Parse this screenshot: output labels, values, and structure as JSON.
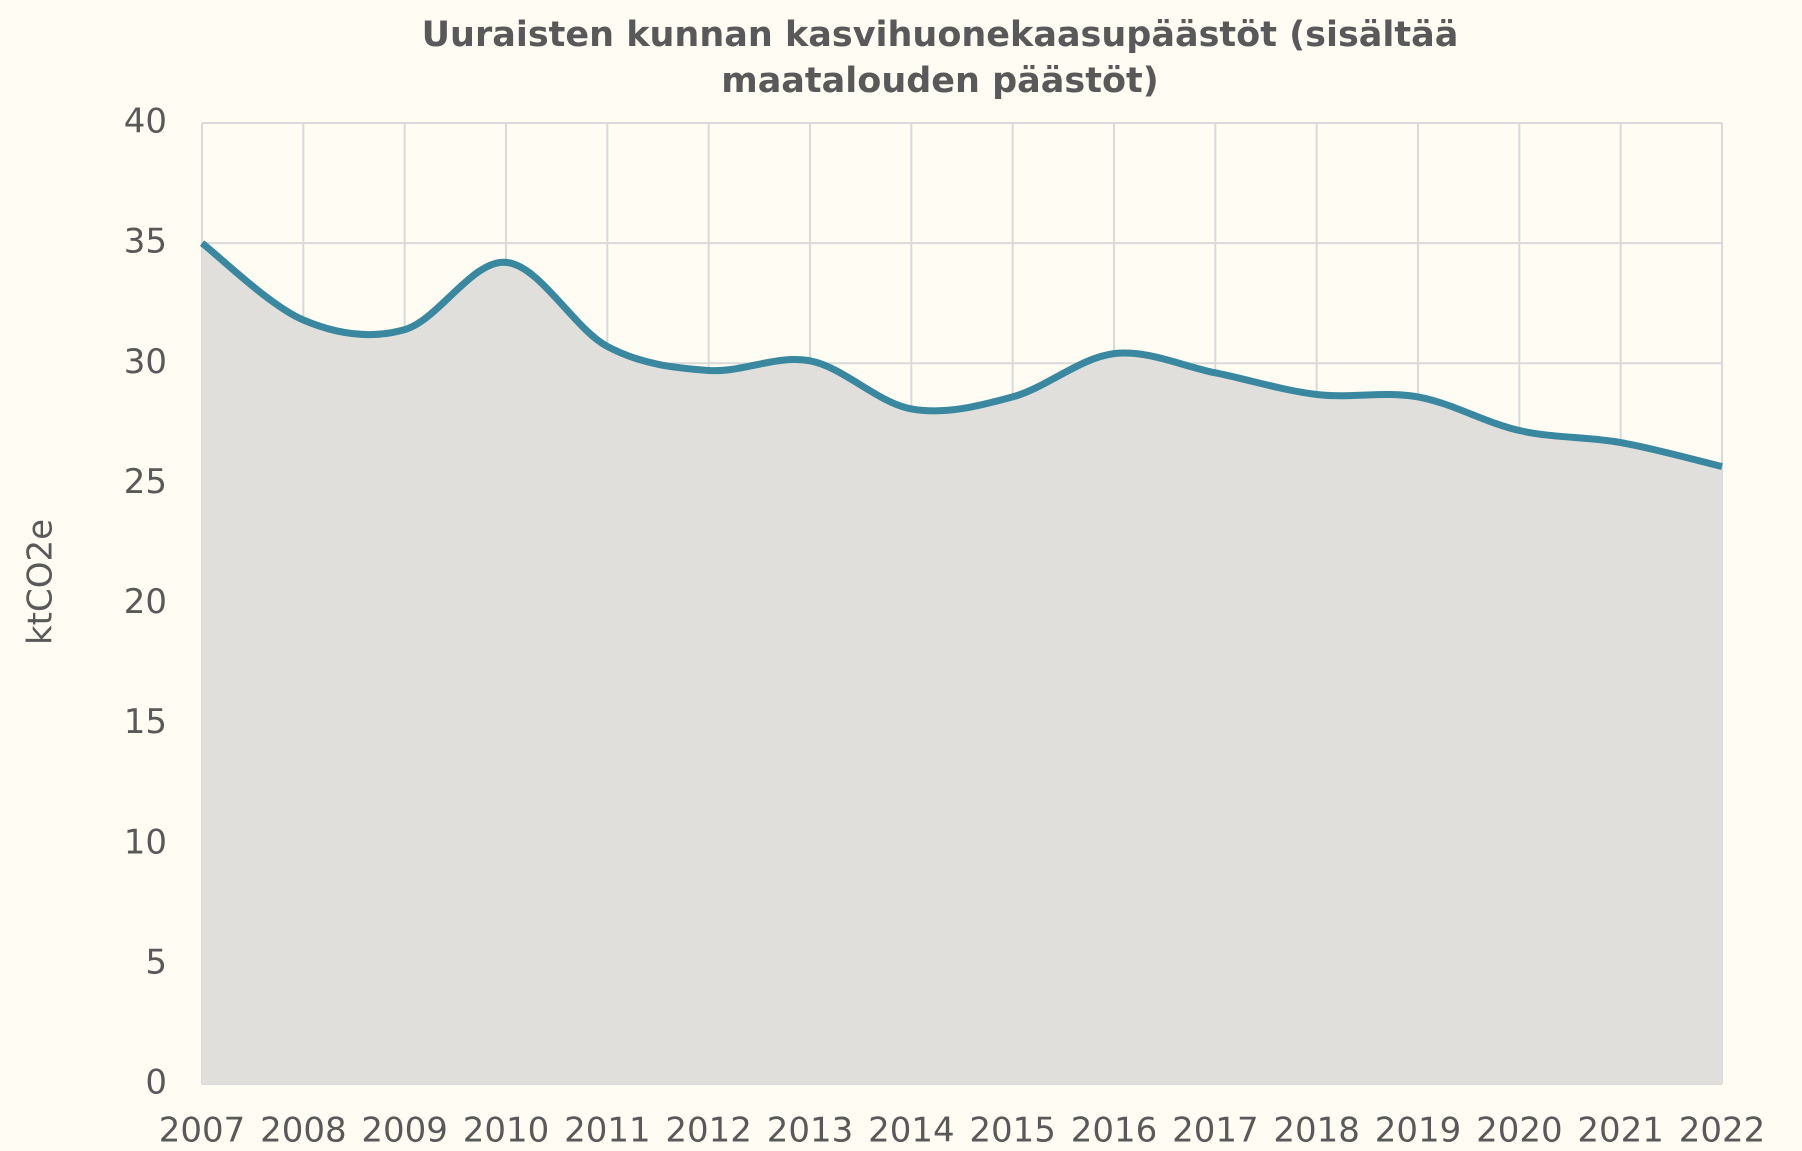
{
  "chart_data": {
    "type": "area",
    "title": "Uuraisten kunnan kasvihuonekaasupäästöt (sisältää maatalouden päästöt)",
    "y_label": "ktCO2e",
    "categories": [
      "2007",
      "2008",
      "2009",
      "2010",
      "2011",
      "2012",
      "2013",
      "2014",
      "2015",
      "2016",
      "2017",
      "2018",
      "2019",
      "2020",
      "2021",
      "2022"
    ],
    "series": [
      {
        "name": "ktCO2e",
        "color": "#3a87a0",
        "fill": "#e0dfdb",
        "values": [
          35.0,
          31.8,
          31.4,
          34.2,
          30.7,
          29.7,
          30.1,
          28.1,
          28.6,
          30.4,
          29.6,
          28.7,
          28.6,
          27.2,
          26.7,
          25.7
        ]
      }
    ],
    "ylim": [
      0,
      40
    ],
    "yticks": [
      0,
      5,
      10,
      15,
      20,
      25,
      30,
      35,
      40
    ],
    "grid": true,
    "smooth": true
  }
}
